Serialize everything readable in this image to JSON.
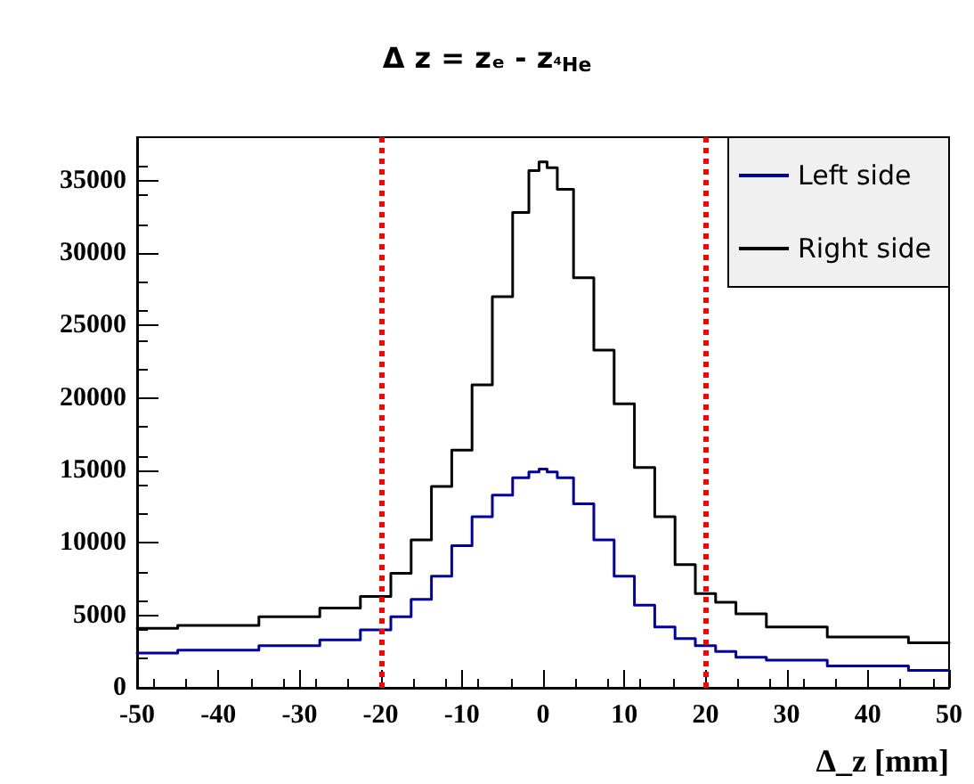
{
  "chart_data": {
    "type": "step",
    "title": "Δ z = zₑ - z$_{⁴He}$",
    "xlabel": "Δ_z [mm]",
    "x": [
      -50,
      -40,
      -30,
      -25,
      -20,
      -17.5,
      -15,
      -12.5,
      -10,
      -7.5,
      -5,
      -2.5,
      -1,
      0,
      1,
      2.5,
      5,
      7.5,
      10,
      12.5,
      15,
      17.5,
      20,
      22.5,
      25,
      30,
      40,
      50
    ],
    "series": [
      {
        "name": "Left side",
        "color": "#0000a0",
        "values": [
          2400,
          2600,
          2900,
          3300,
          4000,
          4900,
          6100,
          7700,
          9800,
          11800,
          13300,
          14500,
          14900,
          15100,
          14900,
          14500,
          12700,
          10200,
          7700,
          5700,
          4200,
          3400,
          2900,
          2500,
          2100,
          1900,
          1500,
          1200
        ]
      },
      {
        "name": "Right side",
        "color": "#000000",
        "values": [
          4100,
          4300,
          4900,
          5500,
          6300,
          7900,
          10200,
          13900,
          16400,
          20900,
          27000,
          32800,
          35700,
          36300,
          35900,
          34400,
          28300,
          23300,
          19600,
          15200,
          11800,
          8500,
          6500,
          5900,
          5100,
          4200,
          3500,
          3100
        ]
      }
    ],
    "xlim": [
      -50,
      50
    ],
    "xticks": [
      -50,
      -40,
      -30,
      -20,
      -10,
      0,
      10,
      20,
      30,
      40,
      50
    ],
    "ylim": [
      0,
      38000
    ],
    "yticks": [
      0,
      5000,
      10000,
      15000,
      20000,
      25000,
      30000,
      35000
    ],
    "ref_lines": [
      {
        "axis": "x",
        "value": -20,
        "color": "#ff0000",
        "line_style": "dotted"
      },
      {
        "axis": "x",
        "value": 20,
        "color": "#ff0000",
        "line_style": "dotted"
      }
    ],
    "grid": false,
    "legend": "top right",
    "marker": "none",
    "line_style": "solid"
  }
}
